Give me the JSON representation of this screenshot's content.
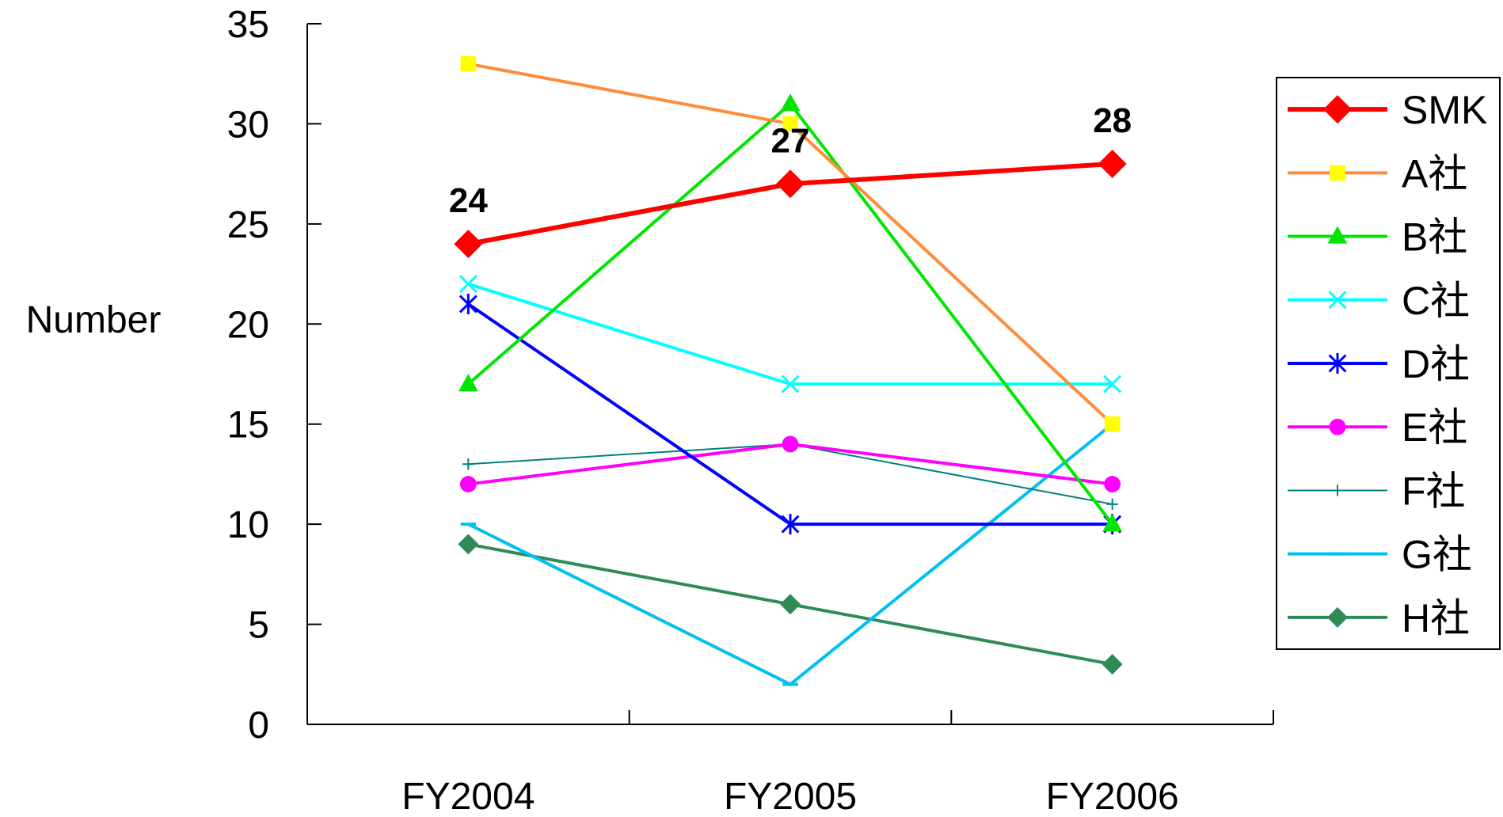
{
  "chart_data": {
    "type": "line",
    "title": "",
    "xlabel": "",
    "ylabel": "Number",
    "categories": [
      "FY2004",
      "FY2005",
      "FY2006"
    ],
    "ylim": [
      0,
      35
    ],
    "yticks": [
      "0",
      "5",
      "10",
      "15",
      "20",
      "25",
      "30",
      "35"
    ],
    "grid": false,
    "legend": "right",
    "data_labels": [
      {
        "series": "SMK",
        "index": 0,
        "text": "24"
      },
      {
        "series": "SMK",
        "index": 1,
        "text": "27"
      },
      {
        "series": "SMK",
        "index": 2,
        "text": "28"
      }
    ],
    "series": [
      {
        "name": "SMK",
        "values": [
          24,
          27,
          28
        ],
        "color": "#ff0000",
        "marker": "diamond",
        "marker_color": "#ff0000"
      },
      {
        "name": "A社",
        "values": [
          33,
          30,
          15
        ],
        "color": "#ff8c3a",
        "marker": "square",
        "marker_color": "#ffff00"
      },
      {
        "name": "B社",
        "values": [
          17,
          31,
          10
        ],
        "color": "#00e600",
        "marker": "triangle",
        "marker_color": "#00e600"
      },
      {
        "name": "C社",
        "values": [
          22,
          17,
          17
        ],
        "color": "#00ffff",
        "marker": "x",
        "marker_color": "#00ffff"
      },
      {
        "name": "D社",
        "values": [
          21,
          10,
          10
        ],
        "color": "#0000ff",
        "marker": "star",
        "marker_color": "#0000ff"
      },
      {
        "name": "E社",
        "values": [
          12,
          14,
          12
        ],
        "color": "#ff00ff",
        "marker": "circle",
        "marker_color": "#ff00ff"
      },
      {
        "name": "F社",
        "values": [
          13,
          14,
          11
        ],
        "color": "#008080",
        "marker": "plus",
        "marker_color": "#008080"
      },
      {
        "name": "G社",
        "values": [
          10,
          2,
          15
        ],
        "color": "#00c0f0",
        "marker": "dash",
        "marker_color": "#00c0f0"
      },
      {
        "name": "H社",
        "values": [
          9,
          6,
          3
        ],
        "color": "#2e8b57",
        "marker": "diamond",
        "marker_color": "#2e8b57"
      }
    ]
  }
}
